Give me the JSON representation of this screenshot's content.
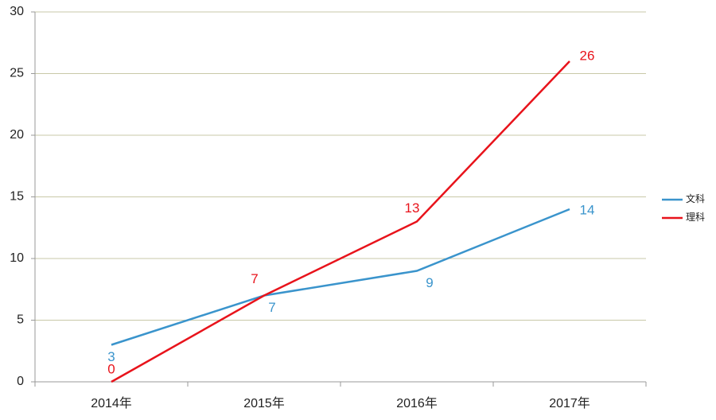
{
  "chart_data": {
    "type": "line",
    "categories": [
      "2014年",
      "2015年",
      "2016年",
      "2017年"
    ],
    "series": [
      {
        "name": "文科",
        "color": "#3a94cc",
        "values": [
          3,
          7,
          9,
          14
        ]
      },
      {
        "name": "理科",
        "color": "#e8131b",
        "values": [
          0,
          7,
          13,
          26
        ]
      }
    ],
    "ylim": [
      0,
      30
    ],
    "yticks": [
      0,
      5,
      10,
      15,
      20,
      25,
      30
    ],
    "grid": true,
    "legend": "right"
  }
}
